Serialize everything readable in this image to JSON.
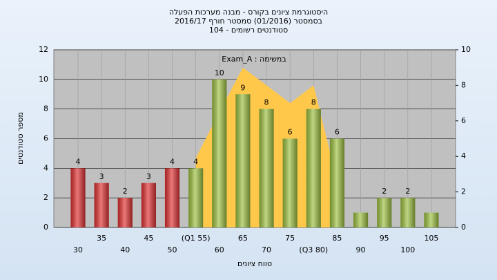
{
  "chart_data": {
    "type": "bar",
    "title": "היסטוגרמת ציונים בקורס - מבנה מערכות הפעלה",
    "subtitle": [
      "בסמסטר (01/2016) סמסטר חורף 2016/17",
      "סטודנטים רשומים - 104"
    ],
    "x_label": "טווח ציונים",
    "y_label": "מספר סטודנטים",
    "categories": [
      "30",
      "35",
      "40",
      "45",
      "50",
      "(Q1 55)",
      "60",
      "65",
      "70",
      "75",
      "(Q3 80)",
      "85",
      "90",
      "95",
      "100",
      "105"
    ],
    "series": [
      {
        "values": [
          4,
          3,
          2,
          3,
          4,
          4,
          10,
          9,
          8,
          6,
          8,
          6,
          1,
          2,
          2,
          1
        ],
        "value_labels": [
          "4",
          "3",
          "2",
          "3",
          "4",
          "4",
          "10",
          "9",
          "8",
          "6",
          "8",
          "6",
          null,
          "2",
          "2",
          null
        ],
        "colors": [
          "#e03030",
          "#e03030",
          "#e03030",
          "#e03030",
          "#e03030",
          "#9cc040",
          "#9cc040",
          "#9cc040",
          "#9cc040",
          "#9cc040",
          "#9cc040",
          "#9cc040",
          "#9cc040",
          "#9cc040",
          "#9cc040",
          "#9cc040"
        ]
      },
      {
        "name": "במשימה : Exam_A",
        "type": "area",
        "axis": "y2",
        "color": "#ffc84a",
        "values": [
          null,
          null,
          null,
          null,
          null,
          3.9,
          6.5,
          9,
          8,
          7,
          8,
          2.6,
          null,
          null,
          null,
          null
        ]
      }
    ],
    "ylim": [
      0,
      12
    ],
    "yticks": [
      0,
      2,
      4,
      6,
      8,
      10,
      12
    ],
    "y2lim": [
      0,
      10
    ],
    "y2ticks": [
      0,
      2,
      4,
      6,
      8,
      10
    ],
    "grid": true
  }
}
